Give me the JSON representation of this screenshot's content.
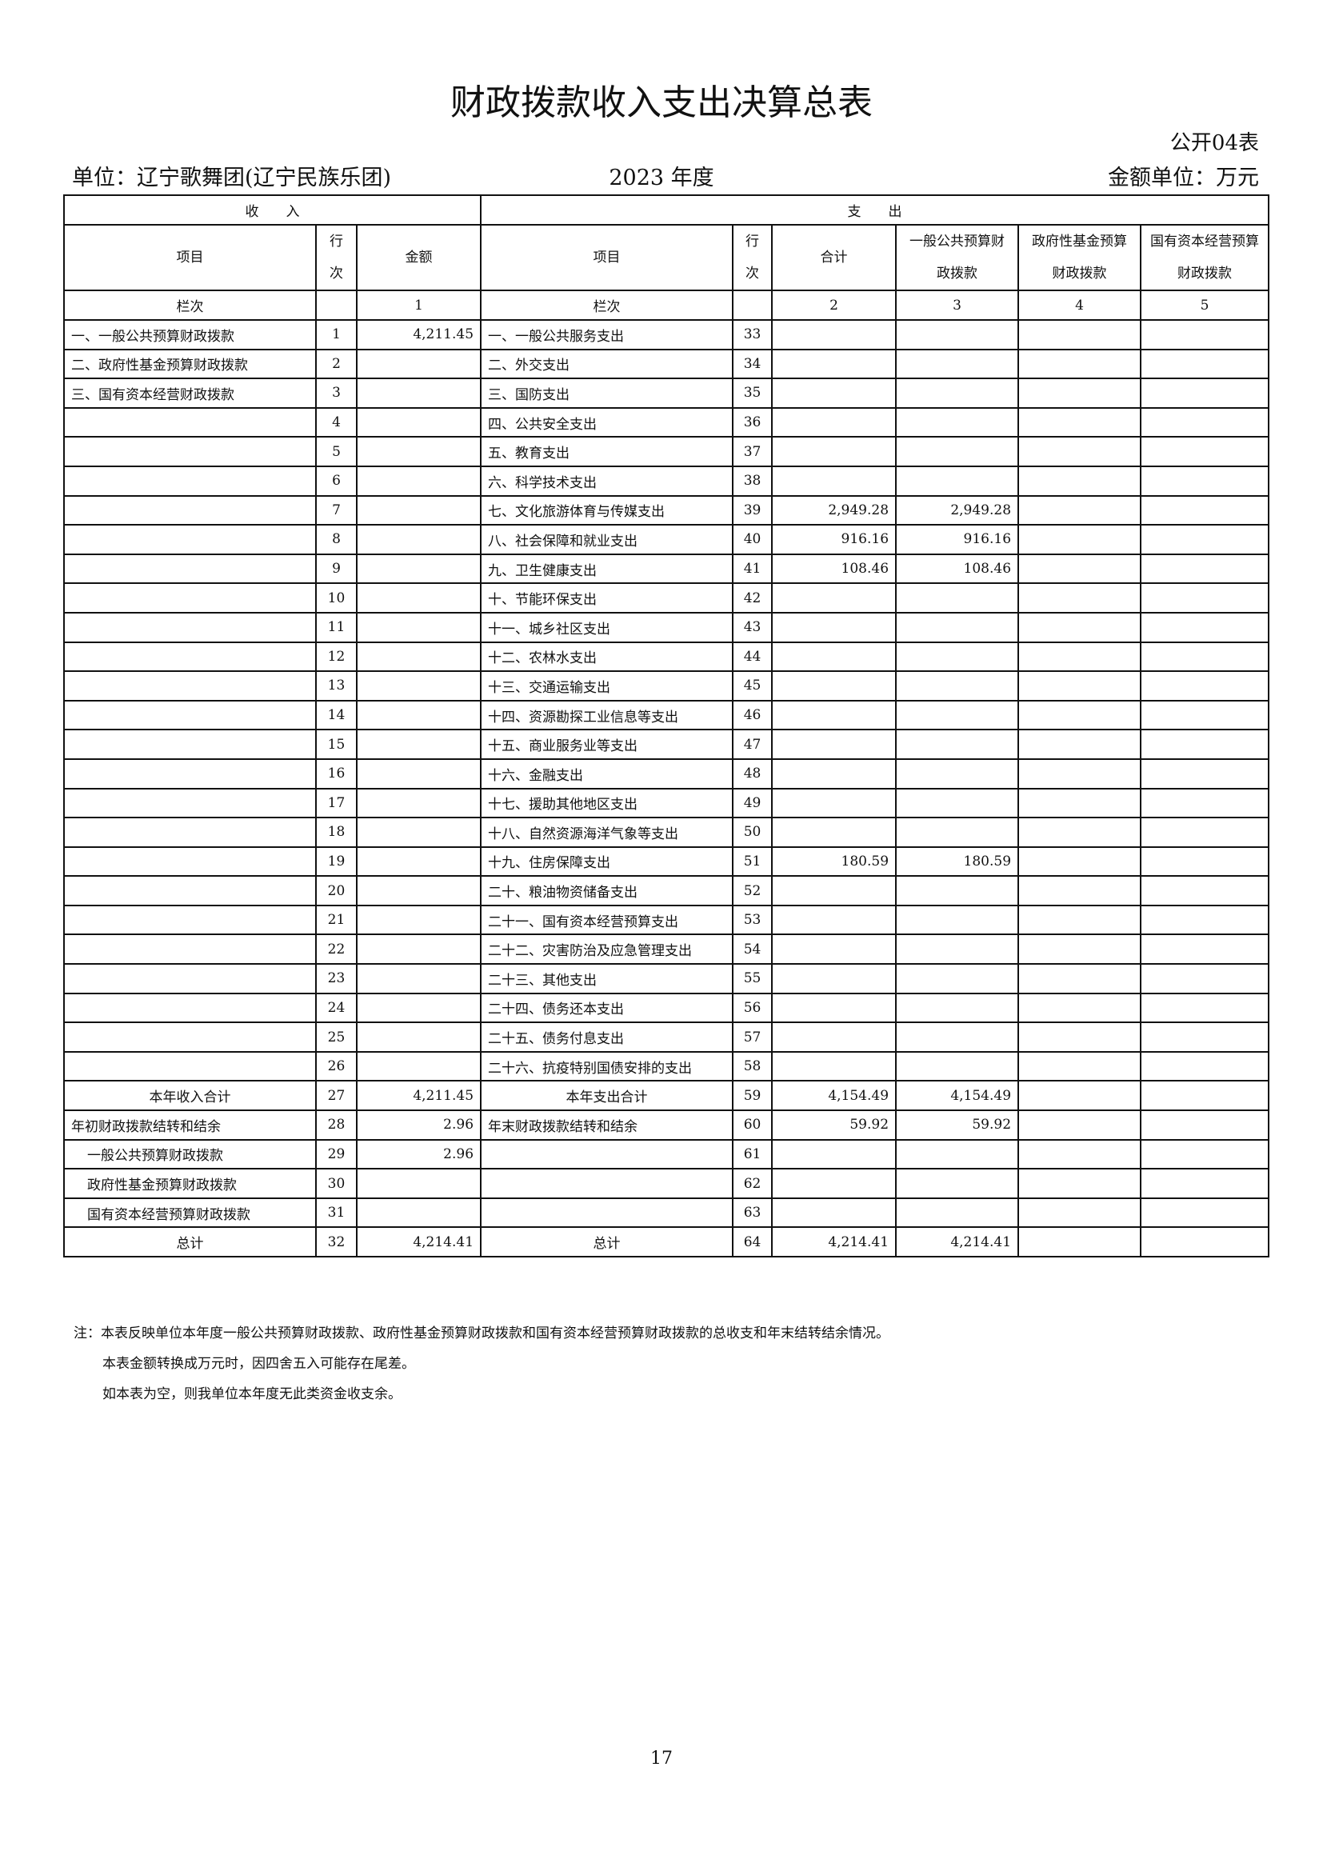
{
  "title": "财政拨款收入支出决算总表",
  "form_no": "公开04表",
  "unit": "单位：辽宁歌舞团(辽宁民族乐团)",
  "year": "2023 年度",
  "money_unit": "金额单位：万元",
  "headers": {
    "income": "收　　入",
    "expense": "支　　出",
    "item": "项目",
    "line": "行次",
    "amount": "金额",
    "total": "合计",
    "general": "一般公共预算财政拨款",
    "gov_fund": "政府性基金预算财政拨款",
    "state_capital": "国有资本经营预算财政拨款",
    "col_label": "栏次",
    "col1": "1",
    "col2": "2",
    "col3": "3",
    "col4": "4",
    "col5": "5"
  },
  "rows": [
    [
      "一、一般公共预算财政拨款",
      "1",
      "4,211.45",
      "一、一般公共服务支出",
      "33",
      "",
      "",
      "",
      ""
    ],
    [
      "二、政府性基金预算财政拨款",
      "2",
      "",
      "二、外交支出",
      "34",
      "",
      "",
      "",
      ""
    ],
    [
      "三、国有资本经营财政拨款",
      "3",
      "",
      "三、国防支出",
      "35",
      "",
      "",
      "",
      ""
    ],
    [
      "",
      "4",
      "",
      "四、公共安全支出",
      "36",
      "",
      "",
      "",
      ""
    ],
    [
      "",
      "5",
      "",
      "五、教育支出",
      "37",
      "",
      "",
      "",
      ""
    ],
    [
      "",
      "6",
      "",
      "六、科学技术支出",
      "38",
      "",
      "",
      "",
      ""
    ],
    [
      "",
      "7",
      "",
      "七、文化旅游体育与传媒支出",
      "39",
      "2,949.28",
      "2,949.28",
      "",
      ""
    ],
    [
      "",
      "8",
      "",
      "八、社会保障和就业支出",
      "40",
      "916.16",
      "916.16",
      "",
      ""
    ],
    [
      "",
      "9",
      "",
      "九、卫生健康支出",
      "41",
      "108.46",
      "108.46",
      "",
      ""
    ],
    [
      "",
      "10",
      "",
      "十、节能环保支出",
      "42",
      "",
      "",
      "",
      ""
    ],
    [
      "",
      "11",
      "",
      "十一、城乡社区支出",
      "43",
      "",
      "",
      "",
      ""
    ],
    [
      "",
      "12",
      "",
      "十二、农林水支出",
      "44",
      "",
      "",
      "",
      ""
    ],
    [
      "",
      "13",
      "",
      "十三、交通运输支出",
      "45",
      "",
      "",
      "",
      ""
    ],
    [
      "",
      "14",
      "",
      "十四、资源勘探工业信息等支出",
      "46",
      "",
      "",
      "",
      ""
    ],
    [
      "",
      "15",
      "",
      "十五、商业服务业等支出",
      "47",
      "",
      "",
      "",
      ""
    ],
    [
      "",
      "16",
      "",
      "十六、金融支出",
      "48",
      "",
      "",
      "",
      ""
    ],
    [
      "",
      "17",
      "",
      "十七、援助其他地区支出",
      "49",
      "",
      "",
      "",
      ""
    ],
    [
      "",
      "18",
      "",
      "十八、自然资源海洋气象等支出",
      "50",
      "",
      "",
      "",
      ""
    ],
    [
      "",
      "19",
      "",
      "十九、住房保障支出",
      "51",
      "180.59",
      "180.59",
      "",
      ""
    ],
    [
      "",
      "20",
      "",
      "二十、粮油物资储备支出",
      "52",
      "",
      "",
      "",
      ""
    ],
    [
      "",
      "21",
      "",
      "二十一、国有资本经营预算支出",
      "53",
      "",
      "",
      "",
      ""
    ],
    [
      "",
      "22",
      "",
      "二十二、灾害防治及应急管理支出",
      "54",
      "",
      "",
      "",
      ""
    ],
    [
      "",
      "23",
      "",
      "二十三、其他支出",
      "55",
      "",
      "",
      "",
      ""
    ],
    [
      "",
      "24",
      "",
      "二十四、债务还本支出",
      "56",
      "",
      "",
      "",
      ""
    ],
    [
      "",
      "25",
      "",
      "二十五、债务付息支出",
      "57",
      "",
      "",
      "",
      ""
    ],
    [
      "",
      "26",
      "",
      "二十六、抗疫特别国债安排的支出",
      "58",
      "",
      "",
      "",
      ""
    ],
    [
      "本年收入合计",
      "27",
      "4,211.45",
      "本年支出合计",
      "59",
      "4,154.49",
      "4,154.49",
      "",
      ""
    ],
    [
      "年初财政拨款结转和结余",
      "28",
      "2.96",
      "年末财政拨款结转和结余",
      "60",
      "59.92",
      "59.92",
      "",
      ""
    ],
    [
      "一般公共预算财政拨款",
      "29",
      "2.96",
      "",
      "61",
      "",
      "",
      "",
      ""
    ],
    [
      "政府性基金预算财政拨款",
      "30",
      "",
      "",
      "62",
      "",
      "",
      "",
      ""
    ],
    [
      "国有资本经营预算财政拨款",
      "31",
      "",
      "",
      "63",
      "",
      "",
      "",
      ""
    ],
    [
      "总计",
      "32",
      "4,214.41",
      "总计",
      "64",
      "4,214.41",
      "4,214.41",
      "",
      ""
    ]
  ],
  "notes": [
    "注：本表反映单位本年度一般公共预算财政拨款、政府性基金预算财政拨款和国有资本经营预算财政拨款的总收支和年末结转结余情况。",
    "本表金额转换成万元时，因四舍五入可能存在尾差。",
    "如本表为空，则我单位本年度无此类资金收支余。"
  ],
  "page_number": "17"
}
